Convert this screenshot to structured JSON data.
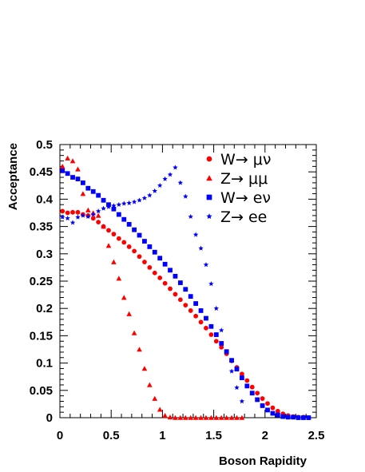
{
  "chart_data": {
    "type": "scatter",
    "xlabel": "Boson Rapidity",
    "ylabel": "Acceptance",
    "xlim": [
      0,
      2.5
    ],
    "ylim": [
      0,
      0.5
    ],
    "x_ticks": [
      "0",
      "0.5",
      "1",
      "1.5",
      "2",
      "2.5"
    ],
    "y_ticks": [
      "0",
      "0.05",
      "0.1",
      "0.15",
      "0.2",
      "0.25",
      "0.3",
      "0.35",
      "0.4",
      "0.45",
      "0.5"
    ],
    "grid": false,
    "legend_position": "top-right",
    "series": [
      {
        "name": "W→ μν",
        "marker": "circle",
        "color": "#ff0000",
        "x": [
          0.025,
          0.075,
          0.125,
          0.175,
          0.225,
          0.275,
          0.325,
          0.375,
          0.425,
          0.475,
          0.525,
          0.575,
          0.625,
          0.675,
          0.725,
          0.775,
          0.825,
          0.875,
          0.925,
          0.975,
          1.025,
          1.075,
          1.125,
          1.175,
          1.225,
          1.275,
          1.325,
          1.375,
          1.425,
          1.475,
          1.525,
          1.575,
          1.625,
          1.675,
          1.725,
          1.775,
          1.825,
          1.875,
          1.925,
          1.975,
          2.025,
          2.075,
          2.125,
          2.175,
          2.225,
          2.275,
          2.325,
          2.375,
          2.425
        ],
        "y": [
          0.378,
          0.375,
          0.376,
          0.376,
          0.372,
          0.37,
          0.365,
          0.358,
          0.35,
          0.343,
          0.336,
          0.328,
          0.321,
          0.313,
          0.305,
          0.295,
          0.285,
          0.275,
          0.265,
          0.256,
          0.246,
          0.236,
          0.226,
          0.216,
          0.206,
          0.196,
          0.186,
          0.175,
          0.164,
          0.152,
          0.14,
          0.129,
          0.117,
          0.104,
          0.092,
          0.08,
          0.068,
          0.056,
          0.045,
          0.035,
          0.026,
          0.018,
          0.012,
          0.007,
          0.004,
          0.002,
          0.001,
          0.001,
          0.0
        ]
      },
      {
        "name": "Z→ μμ",
        "marker": "triangle",
        "color": "#ff0000",
        "x": [
          0.025,
          0.075,
          0.125,
          0.175,
          0.225,
          0.275,
          0.325,
          0.375,
          0.425,
          0.475,
          0.525,
          0.575,
          0.625,
          0.675,
          0.725,
          0.775,
          0.825,
          0.875,
          0.925,
          0.975,
          1.025,
          1.075,
          1.125,
          1.175,
          1.225,
          1.275,
          1.325,
          1.375,
          1.425,
          1.475,
          1.525,
          1.575,
          1.625,
          1.675,
          1.725,
          1.775
        ],
        "y": [
          0.46,
          0.475,
          0.47,
          0.455,
          0.41,
          0.38,
          0.375,
          0.37,
          0.35,
          0.315,
          0.285,
          0.255,
          0.22,
          0.19,
          0.155,
          0.125,
          0.09,
          0.06,
          0.035,
          0.015,
          0.004,
          0.001,
          0.0,
          0.0,
          0.0,
          0.0,
          0.0,
          0.0,
          0.0,
          0.0,
          0.0,
          0.0,
          0.0,
          0.0,
          0.0,
          0.0
        ]
      },
      {
        "name": "W→ eν",
        "marker": "square",
        "color": "#0000ff",
        "x": [
          0.025,
          0.075,
          0.125,
          0.175,
          0.225,
          0.275,
          0.325,
          0.375,
          0.425,
          0.475,
          0.525,
          0.575,
          0.625,
          0.675,
          0.725,
          0.775,
          0.825,
          0.875,
          0.925,
          0.975,
          1.025,
          1.075,
          1.125,
          1.175,
          1.225,
          1.275,
          1.325,
          1.375,
          1.425,
          1.475,
          1.525,
          1.575,
          1.625,
          1.675,
          1.725,
          1.775,
          1.825,
          1.875,
          1.925,
          1.975,
          2.025,
          2.075,
          2.125,
          2.175,
          2.225,
          2.275,
          2.325,
          2.375,
          2.425
        ],
        "y": [
          0.452,
          0.447,
          0.44,
          0.437,
          0.43,
          0.42,
          0.414,
          0.407,
          0.398,
          0.39,
          0.382,
          0.372,
          0.363,
          0.354,
          0.344,
          0.334,
          0.323,
          0.313,
          0.303,
          0.292,
          0.281,
          0.27,
          0.259,
          0.247,
          0.235,
          0.222,
          0.209,
          0.196,
          0.182,
          0.167,
          0.152,
          0.136,
          0.121,
          0.105,
          0.089,
          0.073,
          0.058,
          0.045,
          0.033,
          0.022,
          0.014,
          0.008,
          0.005,
          0.002,
          0.001,
          0.001,
          0.0,
          0.0,
          0.0
        ]
      },
      {
        "name": "Z→ ee",
        "marker": "star",
        "color": "#0000ff",
        "x": [
          0.025,
          0.075,
          0.125,
          0.175,
          0.225,
          0.275,
          0.325,
          0.375,
          0.425,
          0.475,
          0.525,
          0.575,
          0.625,
          0.675,
          0.725,
          0.775,
          0.825,
          0.875,
          0.925,
          0.975,
          1.025,
          1.075,
          1.125,
          1.175,
          1.225,
          1.275,
          1.325,
          1.375,
          1.425,
          1.475,
          1.525,
          1.575,
          1.625,
          1.675,
          1.725,
          1.775
        ],
        "y": [
          0.367,
          0.365,
          0.357,
          0.367,
          0.37,
          0.368,
          0.372,
          0.378,
          0.383,
          0.386,
          0.388,
          0.39,
          0.392,
          0.393,
          0.395,
          0.398,
          0.402,
          0.407,
          0.415,
          0.425,
          0.437,
          0.445,
          0.458,
          0.43,
          0.405,
          0.368,
          0.335,
          0.31,
          0.28,
          0.245,
          0.2,
          0.16,
          0.12,
          0.085,
          0.055,
          0.03
        ]
      }
    ]
  }
}
